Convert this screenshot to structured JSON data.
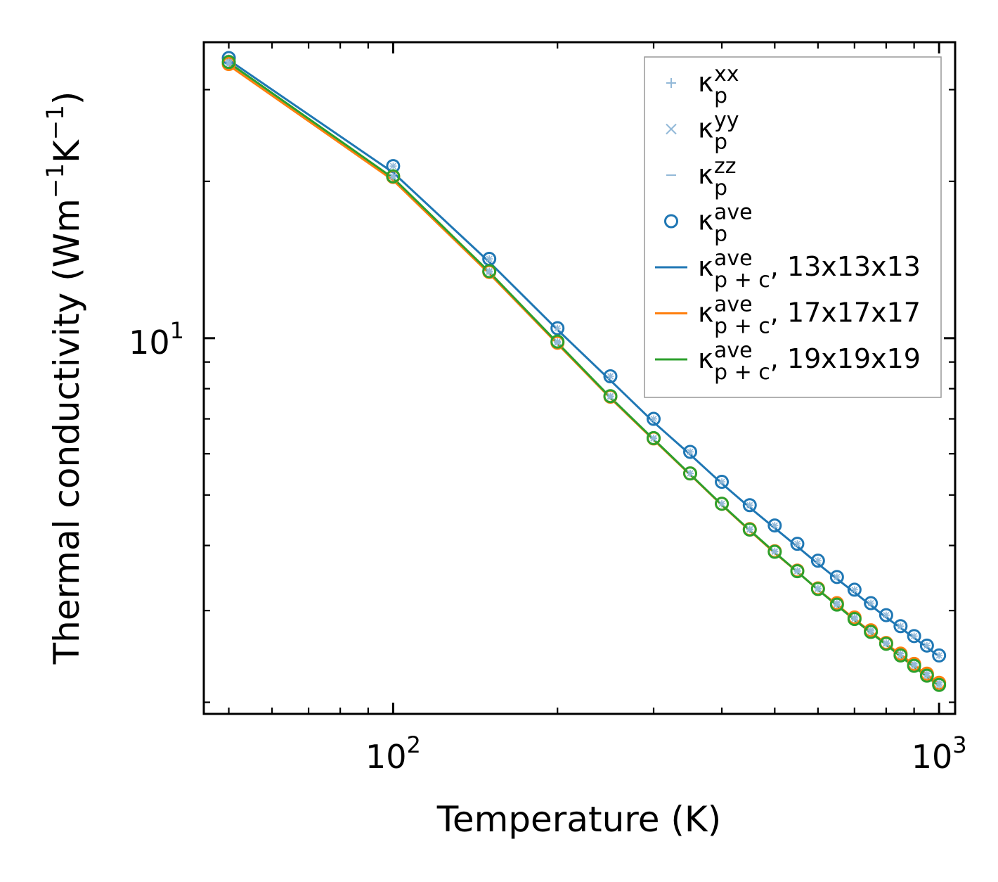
{
  "chart_data": {
    "type": "line",
    "xscale": "log",
    "yscale": "log",
    "xlabel": "Temperature (K)",
    "ylabel": "Thermal conductivity (Wm",
    "ylabel_exp1": "−1",
    "ylabel_mid": "K",
    "ylabel_exp2": "−1",
    "ylabel_end": ")",
    "xlim": [
      45,
      1070
    ],
    "ylim": [
      1.9,
      37
    ],
    "x_major_ticks": [
      {
        "value": 100,
        "base": "10",
        "exp": "2"
      },
      {
        "value": 1000,
        "base": "10",
        "exp": "3"
      }
    ],
    "y_major_ticks": [
      {
        "value": 10,
        "base": "10",
        "exp": "1"
      }
    ],
    "x_minor_ticks": [
      50,
      60,
      70,
      80,
      90,
      200,
      300,
      400,
      500,
      600,
      700,
      800,
      900
    ],
    "y_minor_ticks": [
      2,
      3,
      4,
      5,
      6,
      7,
      8,
      9,
      20,
      30
    ],
    "x": [
      50,
      100,
      150,
      200,
      250,
      300,
      350,
      400,
      450,
      500,
      550,
      600,
      650,
      700,
      750,
      800,
      850,
      900,
      950,
      1000
    ],
    "series": [
      {
        "name": "13x13x13",
        "color": "#1f77b4",
        "line_values": [
          34.2,
          20.8,
          14.0,
          10.38,
          8.3,
          6.9,
          5.98,
          5.26,
          4.73,
          4.32,
          3.98,
          3.69,
          3.45,
          3.25,
          3.07,
          2.91,
          2.78,
          2.66,
          2.55,
          2.45
        ],
        "marker_values": [
          34.5,
          21.4,
          14.2,
          10.45,
          8.45,
          7.0,
          6.05,
          5.3,
          4.78,
          4.37,
          4.03,
          3.74,
          3.48,
          3.29,
          3.1,
          2.94,
          2.8,
          2.68,
          2.57,
          2.46
        ]
      },
      {
        "name": "17x17x17",
        "color": "#ff7f0e",
        "line_values": [
          33.4,
          20.1,
          13.3,
          9.75,
          7.67,
          6.38,
          5.47,
          4.78,
          4.27,
          3.87,
          3.56,
          3.29,
          3.08,
          2.89,
          2.73,
          2.59,
          2.47,
          2.36,
          2.26,
          2.17
        ],
        "marker_values": [
          33.6,
          20.4,
          13.4,
          9.8,
          7.72,
          6.42,
          5.5,
          4.81,
          4.3,
          3.9,
          3.58,
          3.31,
          3.1,
          2.91,
          2.75,
          2.6,
          2.48,
          2.37,
          2.27,
          2.18
        ]
      },
      {
        "name": "19x19x19",
        "color": "#2ca02c",
        "line_values": [
          33.8,
          20.3,
          13.4,
          9.8,
          7.7,
          6.4,
          5.48,
          4.79,
          4.28,
          3.88,
          3.56,
          3.29,
          3.07,
          2.88,
          2.72,
          2.58,
          2.45,
          2.34,
          2.24,
          2.15
        ],
        "marker_values": [
          33.9,
          20.45,
          13.45,
          9.85,
          7.74,
          6.43,
          5.5,
          4.81,
          4.29,
          3.89,
          3.57,
          3.3,
          3.08,
          2.89,
          2.73,
          2.59,
          2.46,
          2.35,
          2.25,
          2.16
        ]
      }
    ],
    "legend_position": "top-right",
    "legend": [
      {
        "kind": "plus",
        "base": "κ",
        "sup": "xx",
        "sub": "p",
        "suffix": "",
        "color": "#93b9d8"
      },
      {
        "kind": "cross",
        "base": "κ",
        "sup": "yy",
        "sub": "p",
        "suffix": "",
        "color": "#93b9d8"
      },
      {
        "kind": "dash",
        "base": "κ",
        "sup": "zz",
        "sub": "p",
        "suffix": "",
        "color": "#93b9d8"
      },
      {
        "kind": "circle",
        "base": "κ",
        "sup": "ave",
        "sub": "p",
        "suffix": "",
        "color": "#1f77b4"
      },
      {
        "kind": "line",
        "base": "κ",
        "sup": "ave",
        "sub": "p + c",
        "suffix": ", 13x13x13",
        "color": "#1f77b4"
      },
      {
        "kind": "line",
        "base": "κ",
        "sup": "ave",
        "sub": "p + c",
        "suffix": ", 17x17x17",
        "color": "#ff7f0e"
      },
      {
        "kind": "line",
        "base": "κ",
        "sup": "ave",
        "sub": "p + c",
        "suffix": ", 19x19x19",
        "color": "#2ca02c"
      }
    ],
    "component_marker_color": "#93b9d8"
  }
}
